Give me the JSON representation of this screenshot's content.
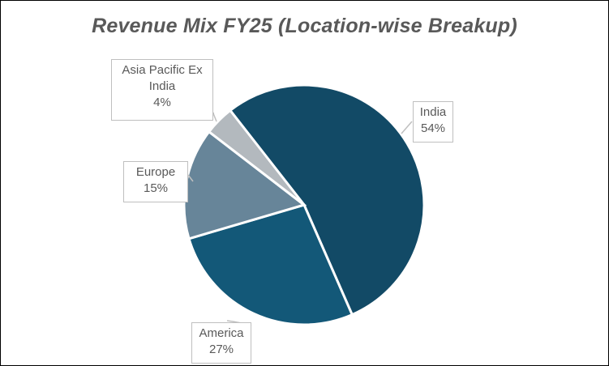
{
  "chart_data": {
    "type": "pie",
    "title": "Revenue Mix FY25 (Location-wise Breakup)",
    "categories": [
      "India",
      "America",
      "Europe",
      "Asia Pacific Ex India"
    ],
    "values": [
      54,
      27,
      15,
      4
    ],
    "unit": "%",
    "colors": [
      "#124a66",
      "#135878",
      "#678599",
      "#b3b9be"
    ],
    "labels": [
      {
        "name": "India",
        "value": "54%"
      },
      {
        "name": "America",
        "value": "27%"
      },
      {
        "name": "Europe",
        "value": "15%"
      },
      {
        "name_line1": "Asia Pacific Ex",
        "name_line2": "India",
        "value": "4%"
      }
    ],
    "legend": "none",
    "start_angle_deg": 322
  }
}
